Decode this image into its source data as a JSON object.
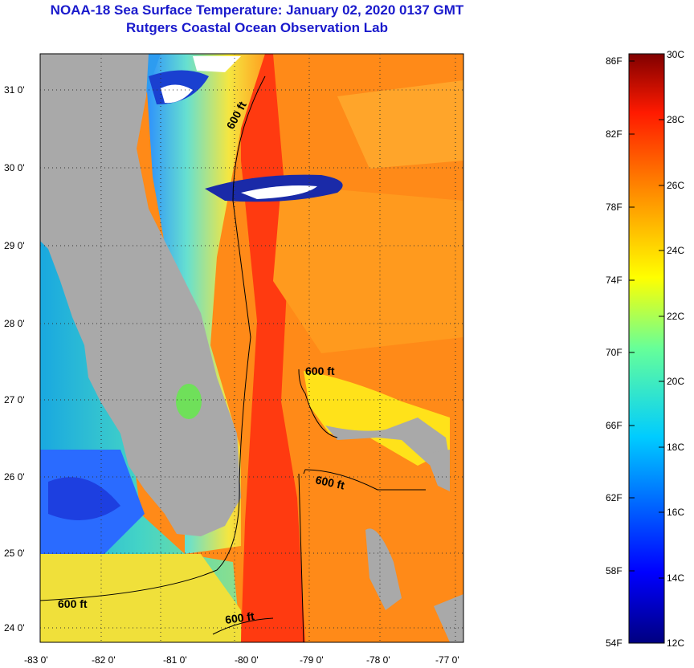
{
  "title": {
    "line1": "NOAA-18 Sea Surface Temperature:  January 02, 2020 0137 GMT",
    "line2": "Rutgers Coastal Ocean Observation Lab"
  },
  "map": {
    "lat_labels": [
      "31 0'",
      "30 0'",
      "29 0'",
      "28 0'",
      "27 0'",
      "26 0'",
      "25 0'",
      "24 0'"
    ],
    "lat_values": [
      31,
      30,
      29,
      28,
      27,
      26,
      25,
      24
    ],
    "lon_labels": [
      "-83 0'",
      "-82 0'",
      "-81 0'",
      "-80 0'",
      "-79 0'",
      "-78 0'",
      "-77 0'"
    ],
    "lon_values": [
      -83,
      -82,
      -81,
      -80,
      -79,
      -78,
      -77
    ],
    "contour_labels": [
      "600 ft",
      "600 ft",
      "600 ft",
      "600 ft",
      "600 ft"
    ],
    "colors": {
      "land": "#a9a9a9",
      "cloud": "#ffffff",
      "gulf_stream": "#ff3a10"
    }
  },
  "colorbar": {
    "f_labels": [
      "86F",
      "82F",
      "78F",
      "74F",
      "70F",
      "66F",
      "62F",
      "58F",
      "54F"
    ],
    "c_labels": [
      "30C",
      "28C",
      "26C",
      "24C",
      "22C",
      "20C",
      "18C",
      "16C",
      "14C",
      "12C"
    ],
    "range_f": [
      54,
      86
    ],
    "range_c": [
      12,
      30
    ]
  }
}
